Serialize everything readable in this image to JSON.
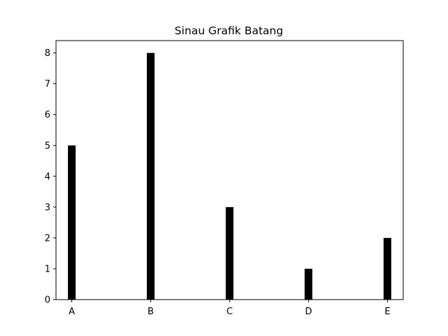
{
  "chart_data": {
    "type": "bar",
    "title": "Sinau Grafik Batang",
    "xlabel": "",
    "ylabel": "",
    "categories": [
      "A",
      "B",
      "C",
      "D",
      "E"
    ],
    "values": [
      5,
      8,
      3,
      1,
      2
    ],
    "ylim": [
      0,
      8.4
    ],
    "yticks": [
      "0",
      "1",
      "2",
      "3",
      "4",
      "5",
      "6",
      "7",
      "8"
    ],
    "bar_color": "#000000",
    "grid": false,
    "legend": "none"
  }
}
